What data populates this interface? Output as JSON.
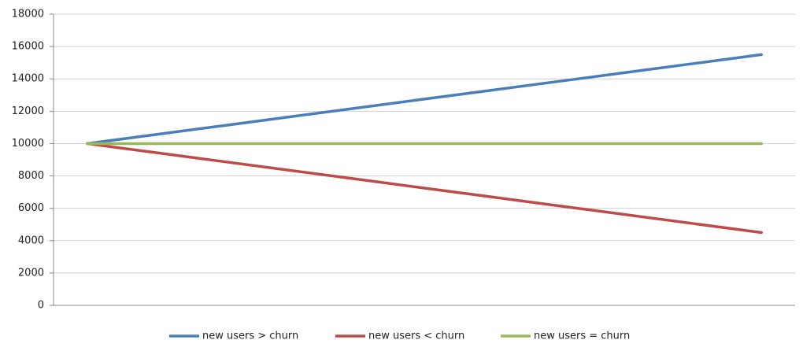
{
  "chart_data": {
    "type": "line",
    "categories": [
      null,
      null,
      null,
      null,
      null,
      null,
      null,
      null,
      null,
      null,
      null
    ],
    "series": [
      {
        "name": "new users > churn",
        "color": "#4a7ebb",
        "values": [
          10000,
          10550,
          11100,
          11650,
          12200,
          12750,
          13300,
          13850,
          14400,
          14950,
          15500
        ]
      },
      {
        "name": "new users < churn",
        "color": "#be4b48",
        "values": [
          10000,
          9450,
          8900,
          8350,
          7800,
          7250,
          6700,
          6150,
          5600,
          5050,
          4500
        ]
      },
      {
        "name": "new users = churn",
        "color": "#98b954",
        "values": [
          10000,
          10000,
          10000,
          10000,
          10000,
          10000,
          10000,
          10000,
          10000,
          10000,
          10000
        ]
      }
    ],
    "ylim": [
      0,
      18000
    ],
    "yticks": [
      0,
      2000,
      4000,
      6000,
      8000,
      10000,
      12000,
      14000,
      16000,
      18000
    ],
    "grid": true,
    "legend": "bottom"
  }
}
